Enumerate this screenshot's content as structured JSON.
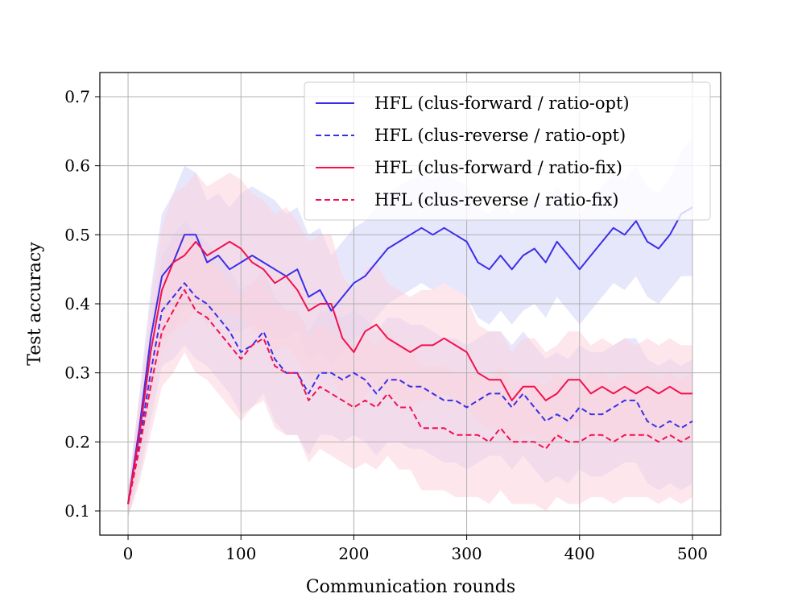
{
  "chart_data": {
    "type": "line",
    "title": "",
    "xlabel": "Communication rounds",
    "ylabel": "Test accuracy",
    "xlim": [
      -25,
      525
    ],
    "ylim": [
      0.065,
      0.735
    ],
    "xticks": [
      0,
      100,
      200,
      300,
      400,
      500
    ],
    "xtick_labels": [
      "0",
      "100",
      "200",
      "300",
      "400",
      "500"
    ],
    "yticks": [
      0.1,
      0.2,
      0.3,
      0.4,
      0.5,
      0.6,
      0.7
    ],
    "ytick_labels": [
      "0.1",
      "0.2",
      "0.3",
      "0.4",
      "0.5",
      "0.6",
      "0.7"
    ],
    "grid": true,
    "legend_position": "top-right",
    "series": [
      {
        "name": "HFL (clus-forward / ratio-opt)",
        "color": "#3b2ee8",
        "dash": "solid",
        "band": "#d4d4fa",
        "x": [
          0,
          10,
          20,
          30,
          40,
          50,
          60,
          70,
          80,
          90,
          100,
          110,
          120,
          130,
          140,
          150,
          160,
          170,
          180,
          190,
          200,
          210,
          220,
          230,
          240,
          250,
          260,
          270,
          280,
          290,
          300,
          310,
          320,
          330,
          340,
          350,
          360,
          370,
          380,
          390,
          400,
          410,
          420,
          430,
          440,
          450,
          460,
          470,
          480,
          490,
          500
        ],
        "y": [
          0.11,
          0.22,
          0.35,
          0.44,
          0.46,
          0.5,
          0.5,
          0.46,
          0.47,
          0.45,
          0.46,
          0.47,
          0.46,
          0.45,
          0.44,
          0.45,
          0.41,
          0.42,
          0.39,
          0.41,
          0.43,
          0.44,
          0.46,
          0.48,
          0.49,
          0.5,
          0.51,
          0.5,
          0.51,
          0.5,
          0.49,
          0.46,
          0.45,
          0.47,
          0.45,
          0.47,
          0.48,
          0.46,
          0.49,
          0.47,
          0.45,
          0.47,
          0.49,
          0.51,
          0.5,
          0.52,
          0.49,
          0.48,
          0.5,
          0.53,
          0.54
        ],
        "band_width": [
          0.02,
          0.05,
          0.07,
          0.09,
          0.1,
          0.1,
          0.09,
          0.09,
          0.09,
          0.09,
          0.1,
          0.1,
          0.1,
          0.1,
          0.09,
          0.09,
          0.09,
          0.09,
          0.08,
          0.08,
          0.08,
          0.08,
          0.08,
          0.08,
          0.08,
          0.08,
          0.08,
          0.08,
          0.08,
          0.08,
          0.08,
          0.08,
          0.08,
          0.08,
          0.08,
          0.08,
          0.08,
          0.08,
          0.08,
          0.08,
          0.08,
          0.08,
          0.08,
          0.08,
          0.08,
          0.08,
          0.08,
          0.08,
          0.08,
          0.09,
          0.1
        ]
      },
      {
        "name": "HFL (clus-reverse / ratio-opt)",
        "color": "#3b2ee8",
        "dash": "dashed",
        "band": "#d4d4fa",
        "x": [
          0,
          10,
          20,
          30,
          40,
          50,
          60,
          70,
          80,
          90,
          100,
          110,
          120,
          130,
          140,
          150,
          160,
          170,
          180,
          190,
          200,
          210,
          220,
          230,
          240,
          250,
          260,
          270,
          280,
          290,
          300,
          310,
          320,
          330,
          340,
          350,
          360,
          370,
          380,
          390,
          400,
          410,
          420,
          430,
          440,
          450,
          460,
          470,
          480,
          490,
          500
        ],
        "y": [
          0.11,
          0.2,
          0.3,
          0.39,
          0.41,
          0.43,
          0.41,
          0.4,
          0.38,
          0.36,
          0.33,
          0.34,
          0.36,
          0.32,
          0.3,
          0.3,
          0.27,
          0.3,
          0.3,
          0.29,
          0.3,
          0.29,
          0.27,
          0.29,
          0.29,
          0.28,
          0.28,
          0.27,
          0.26,
          0.26,
          0.25,
          0.26,
          0.27,
          0.27,
          0.25,
          0.27,
          0.25,
          0.23,
          0.24,
          0.23,
          0.25,
          0.24,
          0.24,
          0.25,
          0.26,
          0.26,
          0.23,
          0.22,
          0.23,
          0.22,
          0.23
        ],
        "band_width": [
          0.02,
          0.05,
          0.07,
          0.08,
          0.09,
          0.09,
          0.09,
          0.09,
          0.09,
          0.09,
          0.09,
          0.09,
          0.09,
          0.09,
          0.09,
          0.09,
          0.09,
          0.09,
          0.09,
          0.09,
          0.09,
          0.09,
          0.09,
          0.09,
          0.09,
          0.09,
          0.09,
          0.09,
          0.09,
          0.09,
          0.09,
          0.09,
          0.09,
          0.09,
          0.09,
          0.09,
          0.09,
          0.09,
          0.09,
          0.09,
          0.09,
          0.09,
          0.09,
          0.09,
          0.09,
          0.09,
          0.09,
          0.09,
          0.09,
          0.09,
          0.09
        ]
      },
      {
        "name": "HFL (clus-forward / ratio-fix)",
        "color": "#f2104f",
        "dash": "solid",
        "band": "#fbd3df",
        "x": [
          0,
          10,
          20,
          30,
          40,
          50,
          60,
          70,
          80,
          90,
          100,
          110,
          120,
          130,
          140,
          150,
          160,
          170,
          180,
          190,
          200,
          210,
          220,
          230,
          240,
          250,
          260,
          270,
          280,
          290,
          300,
          310,
          320,
          330,
          340,
          350,
          360,
          370,
          380,
          390,
          400,
          410,
          420,
          430,
          440,
          450,
          460,
          470,
          480,
          490,
          500
        ],
        "y": [
          0.11,
          0.21,
          0.33,
          0.42,
          0.46,
          0.47,
          0.49,
          0.47,
          0.48,
          0.49,
          0.48,
          0.46,
          0.45,
          0.43,
          0.44,
          0.42,
          0.39,
          0.4,
          0.4,
          0.35,
          0.33,
          0.36,
          0.37,
          0.35,
          0.34,
          0.33,
          0.34,
          0.34,
          0.35,
          0.34,
          0.33,
          0.3,
          0.29,
          0.29,
          0.26,
          0.28,
          0.28,
          0.26,
          0.27,
          0.29,
          0.29,
          0.27,
          0.28,
          0.27,
          0.28,
          0.27,
          0.28,
          0.27,
          0.28,
          0.27,
          0.27
        ],
        "band_width": [
          0.02,
          0.05,
          0.07,
          0.09,
          0.1,
          0.1,
          0.1,
          0.1,
          0.1,
          0.1,
          0.1,
          0.1,
          0.1,
          0.1,
          0.1,
          0.1,
          0.1,
          0.1,
          0.1,
          0.09,
          0.09,
          0.09,
          0.09,
          0.08,
          0.08,
          0.08,
          0.08,
          0.08,
          0.08,
          0.08,
          0.08,
          0.07,
          0.07,
          0.07,
          0.07,
          0.07,
          0.07,
          0.07,
          0.07,
          0.07,
          0.07,
          0.07,
          0.07,
          0.07,
          0.07,
          0.07,
          0.07,
          0.07,
          0.07,
          0.07,
          0.07
        ]
      },
      {
        "name": "HFL (clus-reverse / ratio-fix)",
        "color": "#f2104f",
        "dash": "dashed",
        "band": "#fbd3df",
        "x": [
          0,
          10,
          20,
          30,
          40,
          50,
          60,
          70,
          80,
          90,
          100,
          110,
          120,
          130,
          140,
          150,
          160,
          170,
          180,
          190,
          200,
          210,
          220,
          230,
          240,
          250,
          260,
          270,
          280,
          290,
          300,
          310,
          320,
          330,
          340,
          350,
          360,
          370,
          380,
          390,
          400,
          410,
          420,
          430,
          440,
          450,
          460,
          470,
          480,
          490,
          500
        ],
        "y": [
          0.11,
          0.19,
          0.28,
          0.36,
          0.39,
          0.42,
          0.39,
          0.38,
          0.36,
          0.34,
          0.32,
          0.34,
          0.35,
          0.31,
          0.3,
          0.3,
          0.26,
          0.28,
          0.27,
          0.26,
          0.25,
          0.26,
          0.25,
          0.27,
          0.25,
          0.25,
          0.22,
          0.22,
          0.22,
          0.21,
          0.21,
          0.21,
          0.2,
          0.22,
          0.2,
          0.2,
          0.2,
          0.19,
          0.21,
          0.2,
          0.2,
          0.21,
          0.21,
          0.2,
          0.21,
          0.21,
          0.21,
          0.2,
          0.21,
          0.2,
          0.21
        ],
        "band_width": [
          0.02,
          0.05,
          0.07,
          0.08,
          0.09,
          0.09,
          0.09,
          0.09,
          0.09,
          0.09,
          0.09,
          0.09,
          0.09,
          0.09,
          0.09,
          0.09,
          0.09,
          0.09,
          0.09,
          0.09,
          0.09,
          0.09,
          0.09,
          0.09,
          0.09,
          0.09,
          0.09,
          0.09,
          0.09,
          0.09,
          0.09,
          0.09,
          0.09,
          0.09,
          0.09,
          0.09,
          0.09,
          0.09,
          0.09,
          0.09,
          0.09,
          0.09,
          0.09,
          0.09,
          0.09,
          0.09,
          0.09,
          0.09,
          0.09,
          0.09,
          0.09
        ]
      }
    ]
  }
}
